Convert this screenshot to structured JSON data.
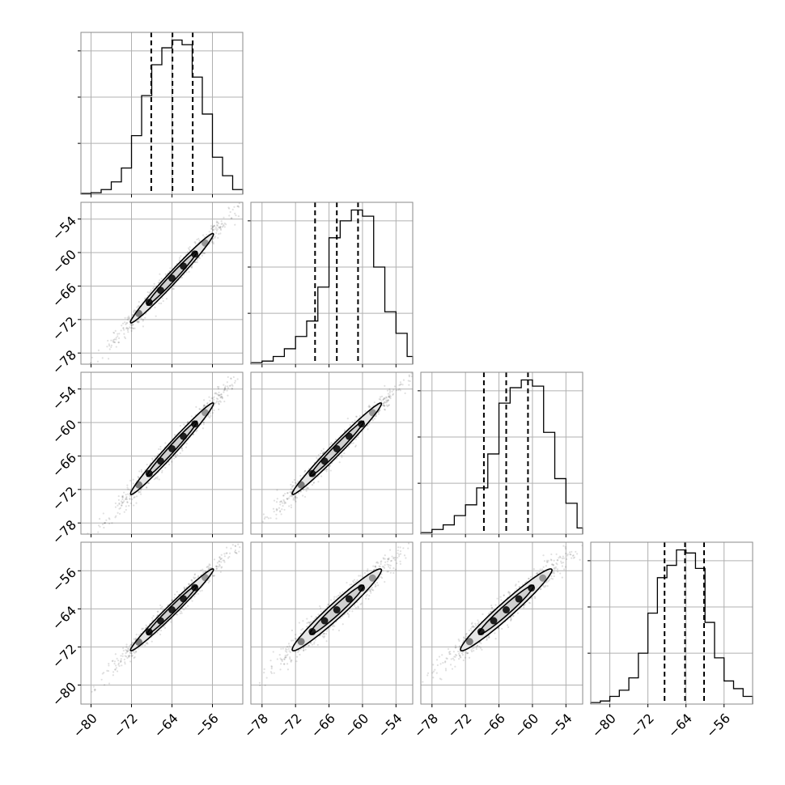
{
  "chart_data": {
    "type": "corner",
    "parameters": 4,
    "grid": true,
    "axis_ranges": [
      [
        -82,
        -50
      ],
      [
        -80,
        -51
      ],
      [
        -80,
        -51
      ],
      [
        -84,
        -50
      ]
    ],
    "ranges_note": "data units",
    "marginals": [
      {
        "param": 0,
        "bin_edges": [
          -82,
          -80,
          -78,
          -76,
          -74,
          -72,
          -70,
          -68,
          -66,
          -64,
          -62,
          -60,
          -58,
          -56,
          -54,
          -52,
          -50
        ],
        "counts": [
          0.005,
          0.01,
          0.03,
          0.08,
          0.17,
          0.38,
          0.64,
          0.84,
          0.95,
          1.0,
          0.97,
          0.76,
          0.52,
          0.24,
          0.12,
          0.03
        ],
        "quantiles": [
          -68.1,
          -63.9,
          -59.9
        ]
      },
      {
        "param": 1,
        "bin_edges": [
          -80,
          -78,
          -76,
          -74,
          -72,
          -70,
          -68,
          -66,
          -64,
          -62,
          -60,
          -58,
          -56,
          -54,
          -52,
          -51
        ],
        "counts": [
          0.01,
          0.02,
          0.05,
          0.1,
          0.18,
          0.28,
          0.5,
          0.82,
          0.93,
          1.0,
          0.96,
          0.63,
          0.34,
          0.2,
          0.05
        ],
        "quantiles": [
          -68.5,
          -64.6,
          -60.8
        ]
      },
      {
        "param": 2,
        "bin_edges": [
          -80,
          -78,
          -76,
          -74,
          -72,
          -70,
          -68,
          -66,
          -64,
          -62,
          -60,
          -58,
          -56,
          -54,
          -52,
          -51
        ],
        "counts": [
          0.01,
          0.03,
          0.06,
          0.12,
          0.19,
          0.3,
          0.52,
          0.85,
          0.95,
          1.0,
          0.96,
          0.66,
          0.36,
          0.2,
          0.04
        ],
        "quantiles": [
          -68.7,
          -64.7,
          -60.8
        ]
      },
      {
        "param": 3,
        "bin_edges": [
          -84,
          -82,
          -80,
          -78,
          -76,
          -74,
          -72,
          -70,
          -68,
          -66,
          -64,
          -62,
          -60,
          -58,
          -56,
          -54,
          -52,
          -50
        ],
        "counts": [
          0.01,
          0.02,
          0.05,
          0.09,
          0.17,
          0.33,
          0.59,
          0.82,
          0.9,
          1.0,
          0.98,
          0.88,
          0.53,
          0.3,
          0.15,
          0.1,
          0.05
        ],
        "quantiles": [
          -68.5,
          -64.2,
          -60.2
        ]
      }
    ],
    "pairs": [
      {
        "x": 0,
        "y": 1,
        "mean": [
          -64.0,
          -64.6
        ],
        "sigma": [
          4.1,
          4.0
        ],
        "correlation": 0.985
      },
      {
        "x": 0,
        "y": 2,
        "mean": [
          -64.0,
          -64.7
        ],
        "sigma": [
          4.1,
          4.1
        ],
        "correlation": 0.985
      },
      {
        "x": 1,
        "y": 2,
        "mean": [
          -64.6,
          -64.7
        ],
        "sigma": [
          4.0,
          4.1
        ],
        "correlation": 0.985
      },
      {
        "x": 0,
        "y": 3,
        "mean": [
          -64.0,
          -64.2
        ],
        "sigma": [
          4.1,
          4.3
        ],
        "correlation": 0.985
      },
      {
        "x": 1,
        "y": 3,
        "mean": [
          -64.6,
          -64.2
        ],
        "sigma": [
          4.0,
          4.3
        ],
        "correlation": 0.97
      },
      {
        "x": 2,
        "y": 3,
        "mean": [
          -64.7,
          -64.2
        ],
        "sigma": [
          4.1,
          4.3
        ],
        "correlation": 0.97
      }
    ],
    "y_ticks": [
      null,
      [
        "−54",
        "−60",
        "−66",
        "−72",
        "−78"
      ],
      [
        "−54",
        "−60",
        "−66",
        "−72",
        "−78"
      ],
      [
        "−56",
        "−64",
        "−72",
        "−80"
      ]
    ],
    "y_tick_values": [
      null,
      [
        -54,
        -60,
        -66,
        -72,
        -78
      ],
      [
        -54,
        -60,
        -66,
        -72,
        -78
      ],
      [
        -56,
        -64,
        -72,
        -80
      ]
    ],
    "x_ticks": [
      [
        "−80",
        "−72",
        "−64",
        "−56"
      ],
      [
        "−78",
        "−72",
        "−66",
        "−60",
        "−54"
      ],
      [
        "−78",
        "−72",
        "−66",
        "−60",
        "−54"
      ],
      [
        "−80",
        "−72",
        "−64",
        "−56"
      ]
    ],
    "x_tick_values": [
      [
        -80,
        -72,
        -64,
        -56
      ],
      [
        -78,
        -72,
        -66,
        -60,
        -54
      ],
      [
        -78,
        -72,
        -66,
        -60,
        -54
      ],
      [
        -80,
        -72,
        -64,
        -56
      ]
    ],
    "colors": {
      "line": "#000000",
      "grid": "#b0b0b0",
      "spine": "#8a8a8a",
      "contour_fill_outer": "#e6e6e6",
      "contour_fill_inner": "#d0d0d0"
    }
  }
}
